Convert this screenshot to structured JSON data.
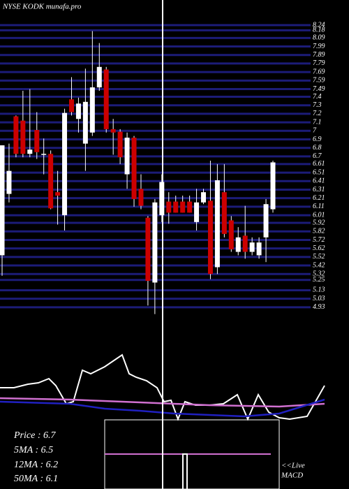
{
  "chart_data": [
    {
      "type": "candlestick",
      "title": "NYSE KODK munafa.pro",
      "up_color": "#ffffff",
      "down_color": "#cc0000",
      "grid_color": "#1c1c78",
      "ylim": [
        4.8,
        8.3
      ],
      "yticks": [
        8.24,
        8.18,
        8.09,
        7.99,
        7.89,
        7.79,
        7.69,
        7.59,
        7.49,
        7.4,
        7.3,
        7.2,
        7.1,
        7,
        6.9,
        6.8,
        6.7,
        6.61,
        6.51,
        6.41,
        6.31,
        6.21,
        6.11,
        6.01,
        5.92,
        5.82,
        5.72,
        5.62,
        5.52,
        5.42,
        5.32,
        5.25,
        5.13,
        5.03,
        4.93
      ],
      "grid": true,
      "open": [
        5.54,
        6.26,
        7.17,
        7.12,
        6.73,
        7.01,
        6.72,
        6.73,
        6.28,
        6.01,
        7.37,
        7.14,
        6.85,
        6.98,
        7.51,
        7.72,
        7.02,
        6.99,
        6.49,
        6.92,
        6.32,
        5.98,
        5.22,
        6.01,
        6.17,
        6.17,
        6.17,
        6.17,
        5.93,
        6.16,
        6.18,
        5.4,
        6.28,
        5.95,
        5.58,
        5.77,
        5.58,
        5.54,
        5.75,
        6.08
      ],
      "high": [
        6.83,
        6.85,
        7.18,
        7.47,
        7.49,
        7.22,
        6.91,
        6.77,
        6.53,
        7.26,
        7.63,
        7.39,
        7.73,
        8.17,
        8.03,
        7.75,
        7.14,
        7.02,
        6.98,
        6.94,
        6.49,
        6.0,
        6.2,
        6.49,
        6.28,
        6.24,
        6.24,
        6.24,
        6.32,
        6.32,
        6.65,
        6.61,
        6.61,
        6.0,
        5.87,
        6.12,
        5.75,
        5.75,
        6.2,
        6.65
      ],
      "low": [
        5.3,
        6.16,
        6.69,
        6.69,
        6.69,
        6.67,
        6.49,
        6.08,
        5.9,
        5.83,
        7.18,
        6.98,
        6.53,
        6.94,
        7.47,
        6.98,
        6.72,
        6.61,
        6.32,
        6.11,
        6.08,
        4.95,
        4.85,
        5.93,
        5.91,
        6.04,
        6.04,
        6.04,
        5.83,
        6.14,
        5.26,
        5.32,
        5.75,
        5.58,
        5.54,
        5.5,
        5.54,
        5.5,
        5.46,
        6.04
      ],
      "close": [
        6.83,
        6.53,
        6.73,
        6.73,
        6.78,
        6.75,
        6.73,
        6.09,
        6.24,
        7.21,
        7.22,
        7.32,
        7.34,
        7.51,
        7.75,
        7.02,
        6.98,
        6.69,
        6.92,
        6.2,
        6.12,
        5.24,
        6.16,
        6.4,
        6.04,
        6.04,
        6.04,
        6.04,
        6.16,
        6.28,
        5.32,
        6.42,
        5.79,
        5.61,
        5.75,
        5.58,
        5.69,
        5.69,
        6.14,
        6.63
      ]
    },
    {
      "type": "line",
      "xlim": [
        0,
        500
      ],
      "ylim": [
        0,
        120
      ],
      "series": [
        {
          "color": "#ffffff",
          "x": [
            0,
            20,
            40,
            55,
            70,
            80,
            95,
            105,
            118,
            130,
            150,
            175,
            185,
            195,
            210,
            225,
            235,
            245,
            255,
            265,
            280,
            300,
            320,
            340,
            355,
            370,
            385,
            400,
            415,
            440,
            465
          ],
          "values": [
            65,
            65,
            70,
            72,
            78,
            68,
            42,
            45,
            90,
            85,
            95,
            112,
            85,
            80,
            75,
            65,
            45,
            47,
            20,
            45,
            40,
            40,
            42,
            55,
            20,
            55,
            30,
            22,
            20,
            24,
            68
          ]
        },
        {
          "color": "#d070d0",
          "x": [
            0,
            100,
            200,
            300,
            400,
            465
          ],
          "values": [
            50,
            48,
            44,
            40,
            38,
            42
          ]
        },
        {
          "color": "#2020c0",
          "x": [
            0,
            100,
            150,
            200,
            250,
            300,
            350,
            400,
            465
          ],
          "values": [
            45,
            42,
            35,
            32,
            28,
            26,
            24,
            28,
            48
          ]
        }
      ]
    }
  ],
  "info": [
    "Price   : 6.7",
    "5MA : 6.5",
    "12MA : 6.2",
    "50MA : 6.1"
  ],
  "live_label": [
    "<<Live",
    "MACD"
  ]
}
